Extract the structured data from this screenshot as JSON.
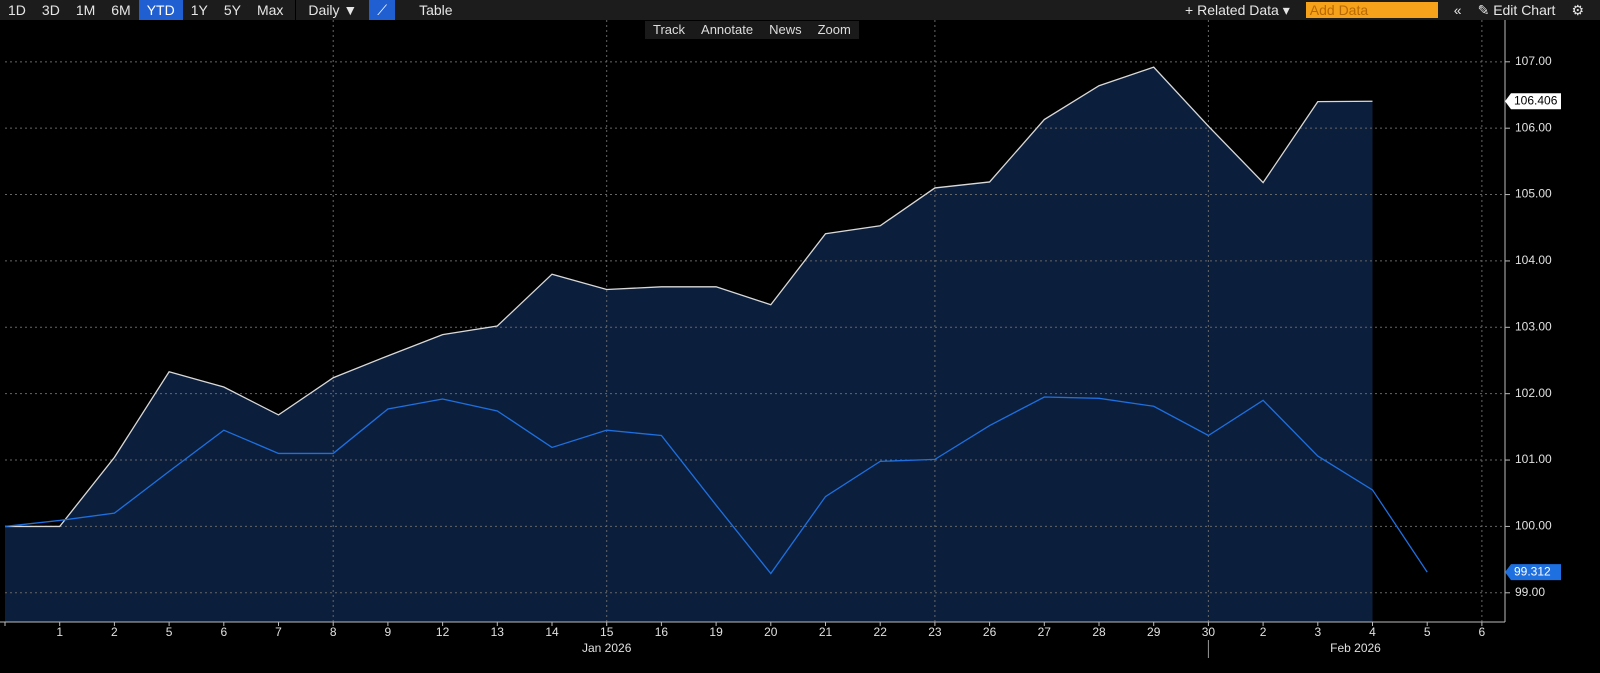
{
  "toolbar": {
    "ranges": [
      "1D",
      "3D",
      "1M",
      "6M",
      "YTD",
      "1Y",
      "5Y",
      "Max"
    ],
    "active_range_index": 4,
    "frequency": "Daily ▼",
    "table": "Table",
    "tools": [
      "Track",
      "Annotate",
      "News",
      "Zoom"
    ],
    "related": "Related Data",
    "add_data": "Add Data",
    "edit": "Edit Chart"
  },
  "chart_data": {
    "type": "line",
    "categories": [
      null,
      "1",
      "2",
      "5",
      "6",
      "7",
      "8",
      "9",
      "12",
      "13",
      "14",
      "15",
      "16",
      "19",
      "20",
      "21",
      "22",
      "23",
      "26",
      "27",
      "28",
      "29",
      "30",
      "2",
      "3",
      "4",
      "5",
      "6"
    ],
    "months": [
      "Jan 2026",
      "Feb 2026"
    ],
    "series": [
      {
        "color": "#d9d9d9",
        "area": true,
        "values": [
          100.0,
          100.0,
          101.04,
          102.33,
          102.1,
          101.68,
          102.24,
          102.57,
          102.89,
          103.02,
          103.8,
          103.57,
          103.61,
          103.61,
          103.34,
          104.41,
          104.53,
          105.1,
          105.19,
          106.13,
          106.64,
          106.92,
          106.03,
          105.18,
          106.4,
          106.406,
          null,
          null
        ],
        "value_labels": [
          null,
          null,
          null,
          null,
          null,
          null,
          null,
          null,
          null,
          null,
          null,
          null,
          null,
          null,
          null,
          null,
          null,
          null,
          null,
          null,
          null,
          null,
          null,
          null,
          null,
          "106.406",
          null,
          null
        ]
      },
      {
        "color": "#1e6fe0",
        "area": false,
        "values": [
          100.0,
          100.09,
          100.2,
          100.83,
          101.45,
          101.1,
          101.1,
          101.77,
          101.92,
          101.74,
          101.19,
          101.45,
          101.37,
          100.32,
          99.29,
          100.45,
          100.98,
          101.01,
          101.52,
          101.95,
          101.93,
          101.81,
          101.37,
          101.9,
          101.06,
          100.55,
          99.312,
          null
        ],
        "value_labels": [
          null,
          null,
          null,
          null,
          null,
          null,
          null,
          null,
          null,
          null,
          null,
          null,
          null,
          null,
          null,
          null,
          null,
          null,
          null,
          null,
          null,
          null,
          null,
          null,
          null,
          null,
          "99.312",
          null
        ]
      }
    ],
    "ylim": [
      98.56,
      107.63
    ],
    "yticks": [
      {
        "value": 99,
        "label": "99.00"
      },
      {
        "value": 100,
        "label": "100.00"
      },
      {
        "value": 101,
        "label": "101.00"
      },
      {
        "value": 102,
        "label": "102.00"
      },
      {
        "value": 103,
        "label": "103.00"
      },
      {
        "value": 104,
        "label": "104.00"
      },
      {
        "value": 105,
        "label": "105.00"
      },
      {
        "value": 106,
        "label": "106.00"
      },
      {
        "value": 107,
        "label": "107.00"
      }
    ],
    "grid": true
  }
}
